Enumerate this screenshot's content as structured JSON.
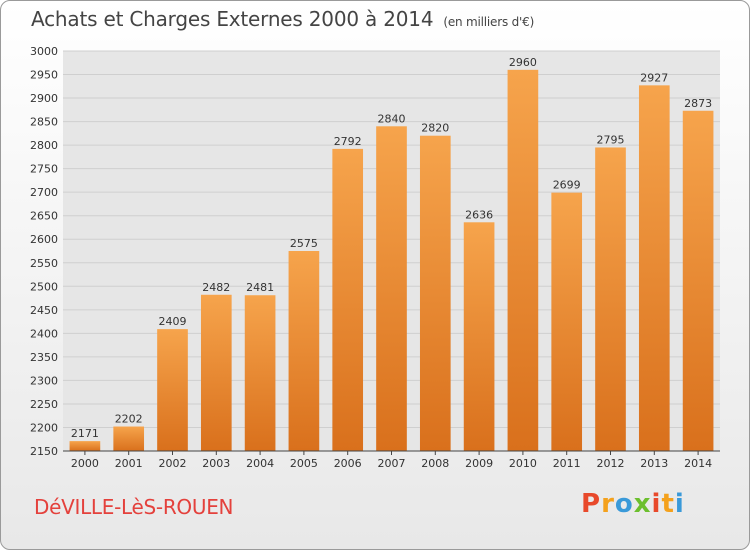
{
  "title": "Achats et Charges Externes 2000 à 2014",
  "subtitle": "(en milliers d'€)",
  "commune": "DéVILLE-LèS-ROUEN",
  "logo": {
    "letters": [
      "P",
      "r",
      "o",
      "x",
      "i",
      "t",
      "i"
    ],
    "colors": [
      "#e8492b",
      "#f4a11c",
      "#3a9ad9",
      "#6cbf2e",
      "#e8492b",
      "#f4a11c",
      "#3a9ad9"
    ]
  },
  "colors": {
    "bar_light": "#f6a44c",
    "bar_dark": "#d9701c",
    "grid": "#cfcfcf"
  },
  "chart_data": {
    "type": "bar",
    "categories": [
      "2000",
      "2001",
      "2002",
      "2003",
      "2004",
      "2005",
      "2006",
      "2007",
      "2008",
      "2009",
      "2010",
      "2011",
      "2012",
      "2013",
      "2014"
    ],
    "values": [
      2171,
      2202,
      2409,
      2482,
      2481,
      2575,
      2792,
      2840,
      2820,
      2636,
      2960,
      2699,
      2795,
      2927,
      2873
    ],
    "ylim": [
      2150,
      3000
    ],
    "yticks": [
      2150,
      2200,
      2250,
      2300,
      2350,
      2400,
      2450,
      2500,
      2550,
      2600,
      2650,
      2700,
      2750,
      2800,
      2850,
      2900,
      2950,
      3000
    ],
    "grid": true
  }
}
